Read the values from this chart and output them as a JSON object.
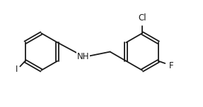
{
  "background_color": "#ffffff",
  "line_color": "#1a1a1a",
  "figsize": [
    2.87,
    1.52
  ],
  "dpi": 100,
  "bond_lw": 1.3,
  "font_size": 8.5,
  "xlim": [
    0,
    5.2
  ],
  "ylim": [
    0.0,
    1.55
  ]
}
